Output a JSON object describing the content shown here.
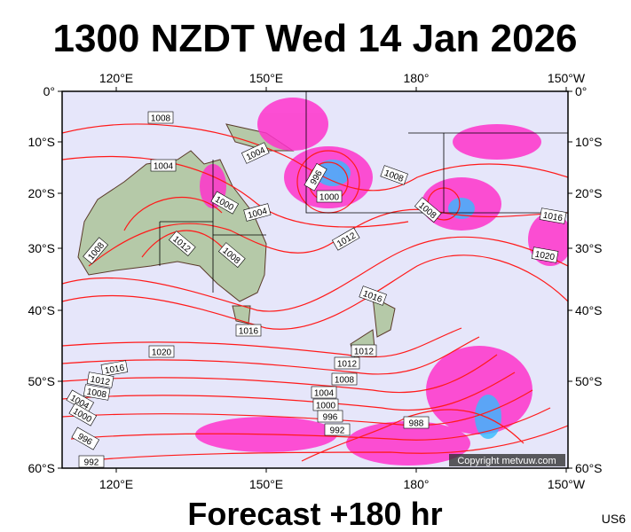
{
  "header": {
    "title": "1300 NZDT Wed 14 Jan 2026"
  },
  "map": {
    "lon_labels": [
      "120°E",
      "150°E",
      "180°",
      "150°W"
    ],
    "lat_labels": [
      "0°",
      "10°S",
      "20°S",
      "30°S",
      "40°S",
      "50°S",
      "60°S"
    ],
    "isobar_labels": [
      1008,
      1004,
      1004,
      996,
      1000,
      1000,
      1004,
      1012,
      1008,
      1008,
      1012,
      1008,
      1008,
      1016,
      1020,
      1016,
      1016,
      1012,
      1012,
      1020,
      1016,
      1012,
      1008,
      1004,
      1000,
      996,
      992,
      1008,
      1004,
      1000,
      996,
      992,
      988
    ],
    "copyright": "Copyright metvuw.com"
  },
  "footer": {
    "forecast": "Forecast +180 hr",
    "code": "US6"
  }
}
